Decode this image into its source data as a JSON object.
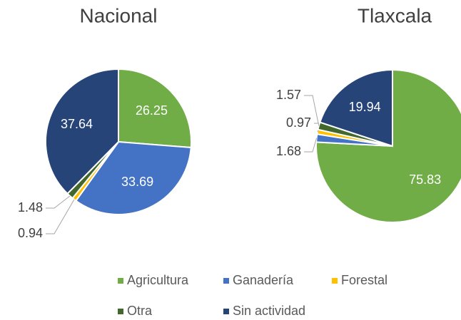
{
  "chart_data": [
    {
      "type": "pie",
      "title": "Nacional",
      "categories": [
        "Agricultura",
        "Ganadería",
        "Forestal",
        "Otra",
        "Sin actividad"
      ],
      "values": [
        26.25,
        33.69,
        0.94,
        1.48,
        37.64
      ],
      "colors": [
        "#70ad47",
        "#4472c4",
        "#ffc000",
        "#43682b",
        "#264478"
      ]
    },
    {
      "type": "pie",
      "title": "Tlaxcala",
      "categories": [
        "Agricultura",
        "Ganadería",
        "Forestal",
        "Otra",
        "Sin actividad"
      ],
      "values": [
        75.83,
        1.68,
        0.97,
        1.57,
        19.94
      ],
      "colors": [
        "#70ad47",
        "#4472c4",
        "#ffc000",
        "#43682b",
        "#264478"
      ]
    }
  ]
}
